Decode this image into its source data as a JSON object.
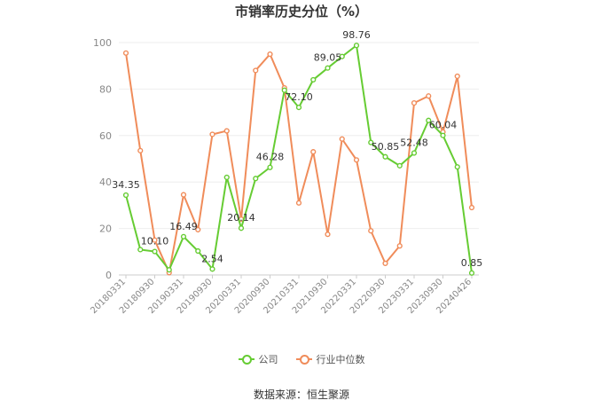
{
  "chart_data": {
    "type": "line",
    "title": "市销率历史分位（%）",
    "xlabel": "",
    "ylabel": "",
    "ylim": [
      0,
      100
    ],
    "yticks": [
      0,
      20,
      40,
      60,
      80,
      100
    ],
    "grid": true,
    "legend_position": "bottom",
    "categories": [
      "20180331",
      "20180630",
      "20180930",
      "20181231",
      "20190331",
      "20190630",
      "20190930",
      "20191231",
      "20200331",
      "20200630",
      "20200930",
      "20201231",
      "20210331",
      "20210630",
      "20210930",
      "20211231",
      "20220331",
      "20220630",
      "20220930",
      "20221231",
      "20230331",
      "20230630",
      "20230930",
      "20231231",
      "20240426"
    ],
    "xtick_labels": [
      "20180331",
      "20180930",
      "20190331",
      "20190930",
      "20200331",
      "20200930",
      "20210331",
      "20210930",
      "20220331",
      "20220930",
      "20230331",
      "20230930",
      "20240426"
    ],
    "series": [
      {
        "name": "公司",
        "color": "#66cc33",
        "values": [
          34.35,
          10.9,
          10.1,
          2.2,
          16.49,
          10.3,
          2.54,
          42.0,
          20.14,
          41.5,
          46.28,
          79.5,
          72.1,
          84.0,
          89.05,
          94.0,
          98.76,
          57.0,
          50.85,
          47.0,
          52.48,
          66.5,
          60.04,
          46.5,
          0.85
        ],
        "labels": {
          "0": "34.35",
          "2": "10.10",
          "4": "16.49",
          "6": "2.54",
          "8": "20.14",
          "10": "46.28",
          "12": "72.10",
          "14": "89.05",
          "16": "98.76",
          "18": "50.85",
          "20": "52.48",
          "22": "60.04",
          "24": "0.85"
        }
      },
      {
        "name": "行业中位数",
        "color": "#f08c5a",
        "values": [
          95.5,
          53.5,
          15.0,
          1.0,
          34.5,
          19.5,
          60.5,
          62.0,
          24.0,
          88.0,
          95.0,
          80.5,
          31.0,
          53.0,
          17.5,
          58.5,
          49.5,
          19.0,
          5.0,
          12.5,
          74.0,
          77.0,
          61.5,
          85.5,
          29.0
        ]
      }
    ]
  },
  "legend": [
    {
      "label": "公司",
      "color": "#66cc33"
    },
    {
      "label": "行业中位数",
      "color": "#f08c5a"
    }
  ],
  "source": "数据来源：恒生聚源"
}
